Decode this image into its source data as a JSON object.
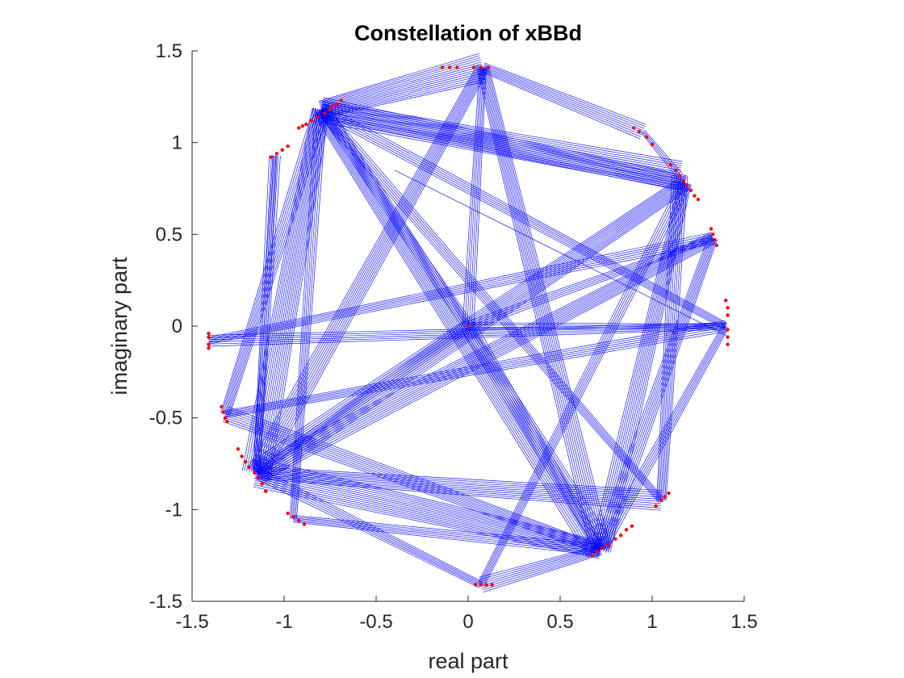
{
  "chart_data": {
    "type": "scatter",
    "title": "Constellation of xBBd",
    "xlabel": "real part",
    "ylabel": "imaginary part",
    "xlim": [
      -1.5,
      1.5
    ],
    "ylim": [
      -1.5,
      1.5
    ],
    "xticks": [
      -1.5,
      -1,
      -0.5,
      0,
      0.5,
      1,
      1.5
    ],
    "yticks": [
      -1.5,
      -1,
      -0.5,
      0,
      0.5,
      1,
      1.5
    ],
    "xtick_labels": [
      "-1.5",
      "-1",
      "-0.5",
      "0",
      "0.5",
      "1",
      "1.5"
    ],
    "ytick_labels": [
      "-1.5",
      "-1",
      "-0.5",
      "0",
      "0.5",
      "1",
      "1.5"
    ],
    "grid": false,
    "line_color": "#0000ff",
    "marker_color": "#ff0000",
    "trajectory_groups": [
      {
        "from": [
          -0.8,
          1.18
        ],
        "to": [
          0.08,
          1.41
        ],
        "copies": 14
      },
      {
        "from": [
          -0.8,
          1.18
        ],
        "to": [
          1.15,
          0.82
        ],
        "copies": 14
      },
      {
        "from": [
          -0.8,
          1.18
        ],
        "to": [
          0.72,
          -1.22
        ],
        "copies": 14
      },
      {
        "from": [
          -0.8,
          1.18
        ],
        "to": [
          -1.15,
          -0.8
        ],
        "copies": 14
      },
      {
        "from": [
          -0.8,
          1.18
        ],
        "to": [
          0.0,
          0.0
        ],
        "copies": 6
      },
      {
        "from": [
          0.08,
          1.41
        ],
        "to": [
          0.95,
          1.06
        ],
        "copies": 8
      },
      {
        "from": [
          0.08,
          1.41
        ],
        "to": [
          0.72,
          -1.22
        ],
        "copies": 10
      },
      {
        "from": [
          0.08,
          1.41
        ],
        "to": [
          -1.15,
          -0.8
        ],
        "copies": 10
      },
      {
        "from": [
          0.08,
          1.41
        ],
        "to": [
          0.0,
          0.0
        ],
        "copies": 6
      },
      {
        "from": [
          1.18,
          0.78
        ],
        "to": [
          -0.8,
          1.18
        ],
        "copies": 12
      },
      {
        "from": [
          1.18,
          0.78
        ],
        "to": [
          0.72,
          -1.22
        ],
        "copies": 10
      },
      {
        "from": [
          1.18,
          0.78
        ],
        "to": [
          -1.15,
          -0.8
        ],
        "copies": 12
      },
      {
        "from": [
          1.33,
          0.48
        ],
        "to": [
          -1.15,
          -0.8
        ],
        "copies": 10
      },
      {
        "from": [
          1.33,
          0.48
        ],
        "to": [
          0.72,
          -1.22
        ],
        "copies": 8
      },
      {
        "from": [
          1.33,
          0.48
        ],
        "to": [
          0.0,
          0.0
        ],
        "copies": 5
      },
      {
        "from": [
          1.4,
          0.0
        ],
        "to": [
          -1.41,
          -0.08
        ],
        "copies": 6
      },
      {
        "from": [
          1.4,
          0.0
        ],
        "to": [
          -0.8,
          1.18
        ],
        "copies": 6
      },
      {
        "from": [
          1.4,
          0.0
        ],
        "to": [
          0.72,
          -1.22
        ],
        "copies": 6
      },
      {
        "from": [
          1.4,
          0.0
        ],
        "to": [
          0.0,
          0.0
        ],
        "copies": 4
      },
      {
        "from": [
          0.72,
          -1.22
        ],
        "to": [
          -1.15,
          -0.8
        ],
        "copies": 14
      },
      {
        "from": [
          0.72,
          -1.22
        ],
        "to": [
          0.07,
          -1.41
        ],
        "copies": 8
      },
      {
        "from": [
          0.72,
          -1.22
        ],
        "to": [
          0.0,
          0.0
        ],
        "copies": 8
      },
      {
        "from": [
          0.72,
          -1.22
        ],
        "to": [
          -1.32,
          -0.48
        ],
        "copies": 8
      },
      {
        "from": [
          -1.15,
          -0.8
        ],
        "to": [
          1.05,
          -0.95
        ],
        "copies": 10
      },
      {
        "from": [
          -1.15,
          -0.8
        ],
        "to": [
          0.0,
          0.0
        ],
        "copies": 6
      },
      {
        "from": [
          -1.15,
          -0.8
        ],
        "to": [
          -1.05,
          0.93
        ],
        "copies": 6
      },
      {
        "from": [
          -1.32,
          -0.48
        ],
        "to": [
          1.4,
          0.0
        ],
        "copies": 6
      },
      {
        "from": [
          -1.32,
          -0.48
        ],
        "to": [
          -0.8,
          1.18
        ],
        "copies": 8
      },
      {
        "from": [
          -1.41,
          -0.08
        ],
        "to": [
          1.33,
          0.48
        ],
        "copies": 6
      },
      {
        "from": [
          -0.95,
          -1.05
        ],
        "to": [
          -0.8,
          1.18
        ],
        "copies": 6
      },
      {
        "from": [
          -0.95,
          -1.05
        ],
        "to": [
          0.72,
          -1.22
        ],
        "copies": 6
      },
      {
        "from": [
          0.07,
          -1.41
        ],
        "to": [
          1.18,
          0.78
        ],
        "copies": 6
      },
      {
        "from": [
          0.07,
          -1.41
        ],
        "to": [
          -1.15,
          -0.8
        ],
        "copies": 6
      },
      {
        "from": [
          1.05,
          -0.95
        ],
        "to": [
          1.15,
          0.82
        ],
        "copies": 8
      },
      {
        "from": [
          1.05,
          -0.95
        ],
        "to": [
          -0.8,
          1.18
        ],
        "copies": 6
      },
      {
        "from": [
          -1.05,
          0.93
        ],
        "to": [
          -1.15,
          -0.8
        ],
        "copies": 4
      },
      {
        "from": [
          -0.4,
          0.85
        ],
        "to": [
          1.4,
          -0.05
        ],
        "copies": 1
      },
      {
        "from": [
          0.95,
          1.06
        ],
        "to": [
          1.15,
          0.82
        ],
        "copies": 4
      }
    ],
    "marker_clusters": [
      {
        "points": [
          [
            -0.78,
            1.16
          ],
          [
            -0.75,
            1.18
          ],
          [
            -0.73,
            1.2
          ],
          [
            -0.71,
            1.21
          ],
          [
            -0.69,
            1.23
          ],
          [
            -0.82,
            1.14
          ],
          [
            -0.85,
            1.12
          ],
          [
            -0.88,
            1.1
          ],
          [
            -0.9,
            1.09
          ],
          [
            -0.92,
            1.08
          ]
        ]
      },
      {
        "points": [
          [
            -0.14,
            1.41
          ],
          [
            -0.1,
            1.41
          ],
          [
            -0.06,
            1.41
          ],
          [
            0.03,
            1.41
          ],
          [
            0.07,
            1.41
          ],
          [
            0.11,
            1.41
          ]
        ]
      },
      {
        "points": [
          [
            0.9,
            1.08
          ],
          [
            0.93,
            1.06
          ],
          [
            0.97,
            1.03
          ],
          [
            1.0,
            0.99
          ]
        ]
      },
      {
        "points": [
          [
            1.1,
            0.88
          ],
          [
            1.13,
            0.85
          ],
          [
            1.15,
            0.82
          ],
          [
            1.17,
            0.79
          ],
          [
            1.19,
            0.77
          ],
          [
            1.21,
            0.74
          ],
          [
            1.23,
            0.71
          ],
          [
            1.25,
            0.69
          ]
        ]
      },
      {
        "points": [
          [
            1.32,
            0.53
          ],
          [
            1.33,
            0.5
          ],
          [
            1.34,
            0.47
          ],
          [
            1.35,
            0.44
          ]
        ]
      },
      {
        "points": [
          [
            1.4,
            0.14
          ],
          [
            1.41,
            0.1
          ],
          [
            1.41,
            0.06
          ],
          [
            1.41,
            -0.02
          ],
          [
            1.41,
            -0.06
          ],
          [
            1.41,
            -0.1
          ]
        ]
      },
      {
        "points": [
          [
            -1.41,
            -0.04
          ],
          [
            -1.41,
            -0.06
          ],
          [
            -1.41,
            -0.1
          ],
          [
            -1.41,
            -0.12
          ]
        ]
      },
      {
        "points": [
          [
            -1.07,
            0.92
          ],
          [
            -1.04,
            0.94
          ],
          [
            -1.01,
            0.96
          ],
          [
            -0.98,
            0.98
          ]
        ]
      },
      {
        "points": [
          [
            -1.34,
            -0.44
          ],
          [
            -1.33,
            -0.47
          ],
          [
            -1.32,
            -0.5
          ],
          [
            -1.31,
            -0.52
          ]
        ]
      },
      {
        "points": [
          [
            -1.25,
            -0.67
          ],
          [
            -1.23,
            -0.71
          ],
          [
            -1.21,
            -0.74
          ],
          [
            -1.19,
            -0.77
          ],
          [
            -1.16,
            -0.8
          ],
          [
            -1.14,
            -0.83
          ],
          [
            -1.12,
            -0.86
          ],
          [
            -1.1,
            -0.9
          ]
        ]
      },
      {
        "points": [
          [
            -0.98,
            -1.02
          ],
          [
            -0.95,
            -1.04
          ],
          [
            -0.92,
            -1.06
          ],
          [
            -0.89,
            -1.08
          ]
        ]
      },
      {
        "points": [
          [
            0.04,
            -1.41
          ],
          [
            0.07,
            -1.41
          ],
          [
            0.1,
            -1.41
          ],
          [
            0.13,
            -1.41
          ]
        ]
      },
      {
        "points": [
          [
            0.67,
            -1.25
          ],
          [
            0.7,
            -1.23
          ],
          [
            0.73,
            -1.21
          ],
          [
            0.76,
            -1.19
          ],
          [
            0.8,
            -1.16
          ],
          [
            0.83,
            -1.14
          ],
          [
            0.86,
            -1.11
          ],
          [
            0.89,
            -1.09
          ]
        ]
      },
      {
        "points": [
          [
            1.02,
            -0.98
          ],
          [
            1.05,
            -0.95
          ],
          [
            1.07,
            -0.93
          ],
          [
            1.09,
            -0.91
          ]
        ]
      },
      {
        "points": [
          [
            0.0,
            0.0
          ]
        ]
      }
    ]
  }
}
